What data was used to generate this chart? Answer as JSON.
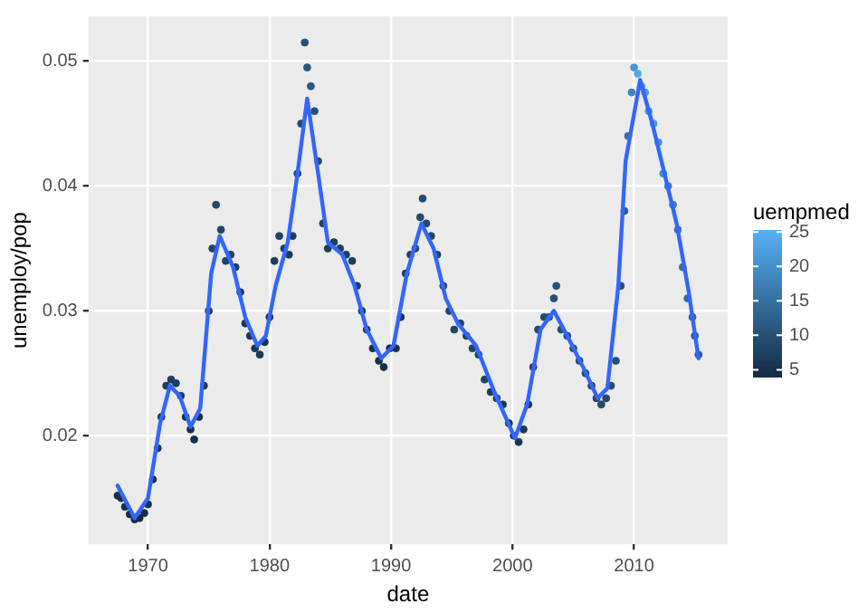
{
  "chart_data": {
    "type": "scatter",
    "xlabel": "date",
    "ylabel": "unemploy/pop",
    "clabel": "uempmed",
    "xlim": [
      1965.1,
      2017.7
    ],
    "ylim": [
      0.0113,
      0.0536
    ],
    "xticks": [
      1970,
      1980,
      1990,
      2000,
      2010
    ],
    "yticks": [
      0.02,
      0.03,
      0.04,
      0.05
    ],
    "clim": [
      4,
      25.3
    ],
    "cticks": [
      5,
      10,
      15,
      20,
      25
    ],
    "grid": true,
    "legend": false,
    "marker": "circle",
    "series": [
      {
        "colors": [
          "#16314b",
          "#16314b",
          "#16314b",
          "#132b43",
          "#16314b",
          "#132b43",
          "#16314b",
          "#16314b",
          "#16314b",
          "#193854",
          "#193854",
          "#1c3e5c",
          "#1c3e5c",
          "#1c3e5c",
          "#193854",
          "#16314b",
          "#16314b",
          "#16314b",
          "#16314b",
          "#193854",
          "#1c3e5c",
          "#204465",
          "#234a6d",
          "#204465",
          "#204465",
          "#204465",
          "#1c3e5c",
          "#1c3e5c",
          "#193854",
          "#193854",
          "#193854",
          "#193854",
          "#16314b",
          "#193854",
          "#1c3e5c",
          "#204465",
          "#1c3e5c",
          "#1c3e5c",
          "#1c3e5c",
          "#204465",
          "#234a6d",
          "#265176",
          "#29577e",
          "#29577e",
          "#265176",
          "#234a6d",
          "#204465",
          "#1c3e5c",
          "#1c3e5c",
          "#1c3e5c",
          "#1c3e5c",
          "#1c3e5c",
          "#1c3e5c",
          "#193854",
          "#193854",
          "#16314b",
          "#16314b",
          "#16314b",
          "#16314b",
          "#16314b",
          "#193854",
          "#1c3e5c",
          "#204465",
          "#234a6d",
          "#234a6d",
          "#234a6d",
          "#234a6d",
          "#204465",
          "#204465",
          "#234a6d",
          "#204465",
          "#204465",
          "#204465",
          "#204465",
          "#204465",
          "#204465",
          "#204465",
          "#1c3e5c",
          "#1c3e5c",
          "#193854",
          "#193854",
          "#193854",
          "#193854",
          "#193854",
          "#193854",
          "#1c3e5c",
          "#234a6d",
          "#234a6d",
          "#265176",
          "#265176",
          "#265176",
          "#265176",
          "#234a6d",
          "#234a6d",
          "#234a6d",
          "#234a6d",
          "#204465",
          "#204465",
          "#234a6d",
          "#234a6d",
          "#234a6d",
          "#265176",
          "#265176",
          "#2c5d87",
          "#3670a0",
          "#3f83b9",
          "#4896d3",
          "#52a9ec",
          "#4fa3e3",
          "#4c9cdb",
          "#4c9cdb",
          "#4c9cdb",
          "#4896d3",
          "#4590ca",
          "#3f83b9",
          "#3c7db1",
          "#3976a8",
          "#3670a0",
          "#326a97",
          "#2f648f",
          "#2c5d87",
          "#29577e"
        ],
        "x": [
          1967.5,
          1967.8,
          1968.1,
          1968.5,
          1968.9,
          1969.3,
          1969.7,
          1970.0,
          1970.4,
          1970.8,
          1971.1,
          1971.5,
          1971.9,
          1972.3,
          1972.7,
          1973.1,
          1973.5,
          1973.8,
          1974.2,
          1974.6,
          1975.0,
          1975.3,
          1975.6,
          1976.0,
          1976.4,
          1976.8,
          1977.2,
          1977.6,
          1978.0,
          1978.4,
          1978.8,
          1979.2,
          1979.6,
          1980.0,
          1980.4,
          1980.8,
          1981.2,
          1981.6,
          1981.9,
          1982.3,
          1982.6,
          1982.9,
          1983.1,
          1983.4,
          1983.7,
          1984.0,
          1984.4,
          1984.8,
          1985.3,
          1985.8,
          1986.3,
          1986.8,
          1987.2,
          1987.6,
          1988.0,
          1988.5,
          1989.0,
          1989.4,
          1989.9,
          1990.4,
          1990.8,
          1991.2,
          1991.6,
          1992.0,
          1992.4,
          1992.6,
          1992.9,
          1993.3,
          1993.8,
          1994.3,
          1994.8,
          1995.2,
          1995.7,
          1996.2,
          1996.7,
          1997.2,
          1997.7,
          1998.2,
          1998.7,
          1999.2,
          1999.7,
          2000.1,
          2000.5,
          2000.9,
          2001.3,
          2001.7,
          2002.1,
          2002.6,
          2003.0,
          2003.4,
          2003.6,
          2004.0,
          2004.5,
          2005.0,
          2005.5,
          2006.0,
          2006.5,
          2006.9,
          2007.3,
          2007.7,
          2008.1,
          2008.5,
          2008.9,
          2009.2,
          2009.5,
          2009.8,
          2010.0,
          2010.3,
          2010.6,
          2010.9,
          2011.2,
          2011.6,
          2012.0,
          2012.4,
          2012.8,
          2013.2,
          2013.6,
          2014.0,
          2014.4,
          2014.8,
          2015.0,
          2015.3
        ],
        "values": [
          0.0152,
          0.015,
          0.0143,
          0.0137,
          0.0133,
          0.0134,
          0.0138,
          0.0145,
          0.0165,
          0.019,
          0.0215,
          0.024,
          0.0245,
          0.0242,
          0.0232,
          0.0215,
          0.0205,
          0.0197,
          0.0215,
          0.024,
          0.03,
          0.035,
          0.0385,
          0.0365,
          0.034,
          0.0345,
          0.0335,
          0.0315,
          0.029,
          0.028,
          0.027,
          0.0265,
          0.0275,
          0.0295,
          0.034,
          0.036,
          0.035,
          0.0345,
          0.036,
          0.041,
          0.045,
          0.0515,
          0.0495,
          0.048,
          0.046,
          0.042,
          0.037,
          0.035,
          0.0355,
          0.035,
          0.0345,
          0.034,
          0.032,
          0.03,
          0.0285,
          0.027,
          0.026,
          0.0255,
          0.027,
          0.027,
          0.0295,
          0.033,
          0.0345,
          0.035,
          0.0375,
          0.039,
          0.037,
          0.036,
          0.0345,
          0.032,
          0.03,
          0.0285,
          0.029,
          0.028,
          0.027,
          0.0265,
          0.0245,
          0.0235,
          0.023,
          0.0225,
          0.021,
          0.02,
          0.0195,
          0.0205,
          0.0225,
          0.0255,
          0.0285,
          0.0295,
          0.0295,
          0.031,
          0.032,
          0.0285,
          0.028,
          0.027,
          0.026,
          0.025,
          0.024,
          0.023,
          0.0225,
          0.023,
          0.024,
          0.026,
          0.032,
          0.038,
          0.044,
          0.0475,
          0.0495,
          0.049,
          0.048,
          0.0475,
          0.046,
          0.045,
          0.0435,
          0.041,
          0.04,
          0.0385,
          0.0365,
          0.0335,
          0.031,
          0.0295,
          0.028,
          0.0265
        ],
        "cvalues": [
          4.5,
          4.7,
          4.6,
          4.4,
          4.5,
          4.4,
          4.6,
          4.6,
          5.2,
          6,
          6.4,
          6.6,
          6.9,
          6.5,
          6,
          5.2,
          4.9,
          5,
          5.4,
          5.9,
          6.7,
          7.8,
          8.6,
          8.2,
          7.9,
          7.6,
          7.4,
          6.9,
          6.4,
          5.9,
          5.6,
          5.5,
          5.4,
          5.8,
          6.8,
          7.5,
          7,
          6.8,
          7.4,
          8.2,
          8.8,
          9.6,
          10.5,
          11,
          10.2,
          9.4,
          7.8,
          7.2,
          6.9,
          6.8,
          7,
          6.9,
          6.5,
          6,
          5.8,
          5.3,
          5,
          4.9,
          5,
          5.3,
          5.9,
          7,
          8,
          8.8,
          9,
          8.8,
          8.6,
          8.4,
          8.2,
          9,
          8,
          7.8,
          8.3,
          8.3,
          7.9,
          8,
          7.6,
          6.8,
          6.6,
          6.4,
          5.8,
          5.9,
          5.7,
          6,
          6.1,
          6.9,
          8.5,
          9.4,
          9.8,
          10.3,
          10.2,
          9.8,
          9,
          9.1,
          8.8,
          8.5,
          8.2,
          8.3,
          8.5,
          8.6,
          8.9,
          9.6,
          10,
          11.5,
          15,
          18,
          21,
          24,
          22.5,
          21.5,
          22,
          21.5,
          20.5,
          19.5,
          18,
          16.5,
          16,
          15,
          13.5,
          12.5,
          11.7,
          11.2
        ]
      },
      {
        "type": "line",
        "color": "#3366ff",
        "marker": "none",
        "x": [
          1967.5,
          1968.9,
          1970,
          1971,
          1971.8,
          1972.6,
          1973.5,
          1974.3,
          1975.2,
          1975.9,
          1977,
          1978,
          1979,
          1979.7,
          1980.5,
          1981.5,
          1982.3,
          1983.1,
          1984,
          1984.8,
          1986,
          1987,
          1988,
          1989.2,
          1990.2,
          1991.3,
          1992.5,
          1993.5,
          1994.5,
          1995.5,
          1997,
          1998.5,
          2000.2,
          2001.2,
          2002.3,
          2003.4,
          2004.5,
          2005.8,
          2007,
          2007.8,
          2008.7,
          2009.3,
          2010.5,
          2011.5,
          2012.5,
          2013.5,
          2014.5,
          2015.3
        ],
        "values": [
          0.016,
          0.0134,
          0.015,
          0.021,
          0.024,
          0.0232,
          0.0207,
          0.0222,
          0.033,
          0.036,
          0.0335,
          0.0295,
          0.0272,
          0.028,
          0.032,
          0.0355,
          0.041,
          0.047,
          0.041,
          0.0355,
          0.0345,
          0.032,
          0.0285,
          0.0262,
          0.0272,
          0.033,
          0.037,
          0.035,
          0.031,
          0.029,
          0.0272,
          0.0235,
          0.0198,
          0.0225,
          0.0285,
          0.03,
          0.028,
          0.0255,
          0.023,
          0.0238,
          0.032,
          0.042,
          0.0485,
          0.045,
          0.041,
          0.037,
          0.0315,
          0.0262
        ]
      }
    ]
  }
}
